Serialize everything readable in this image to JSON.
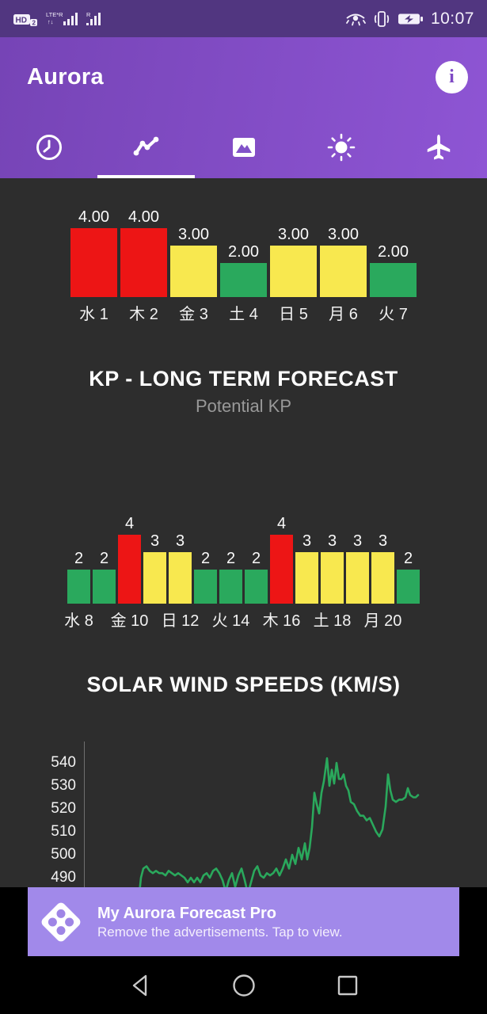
{
  "status_bar": {
    "time": "10:07",
    "left_icons": [
      "hd-volte-icon",
      "lte-signal-icon",
      "signal-icon"
    ],
    "right_icons": [
      "eye-comfort-icon",
      "vibrate-icon",
      "battery-charging-icon"
    ],
    "lte_label": "LTE*R",
    "sim2_label": "R"
  },
  "header": {
    "title": "Aurora"
  },
  "tabs": [
    {
      "icon": "clock-icon",
      "selected": false
    },
    {
      "icon": "trending-icon",
      "selected": true
    },
    {
      "icon": "image-icon",
      "selected": false
    },
    {
      "icon": "sun-icon",
      "selected": false
    },
    {
      "icon": "airplane-icon",
      "selected": false
    }
  ],
  "sections": {
    "kp_forecast": {
      "title": "KP - LONG TERM FORECAST",
      "subtitle": "Potential KP"
    },
    "solar_wind": {
      "title": "SOLAR WIND SPEEDS (KM/S)"
    }
  },
  "ad_banner": {
    "title": "My Aurora Forecast Pro",
    "subtitle": "Remove the advertisements. Tap to view."
  },
  "colors": {
    "kp_4_red": "#ed1515",
    "kp_3_yellow": "#f8e84f",
    "kp_2_green": "#2aa95d",
    "line_green": "#2aa85c",
    "status_bar_purple": "#513680",
    "header_purple_start": "#7644b6",
    "header_purple_end": "#8e55d4",
    "ad_purple": "#a189ea",
    "content_bg": "#2d2d2d"
  },
  "chart_data": [
    {
      "type": "bar",
      "name": "kp-forecast-days-1-7",
      "categories": [
        "水 1",
        "木 2",
        "金 3",
        "土 4",
        "日 5",
        "月 6",
        "火 7"
      ],
      "values": [
        4,
        4,
        3,
        2,
        3,
        3,
        2
      ],
      "value_labels": [
        "4.00",
        "4.00",
        "3.00",
        "2.00",
        "3.00",
        "3.00",
        "2.00"
      ],
      "ylim": [
        0,
        4
      ],
      "color_rule": "4=red, 3=yellow, 2=green"
    },
    {
      "type": "bar",
      "name": "kp-forecast-days-8-21",
      "categories": [
        "水 8",
        "",
        "金 10",
        "",
        "日 12",
        "",
        "火 14",
        "",
        "木 16",
        "",
        "土 18",
        "",
        "月 20",
        ""
      ],
      "values": [
        2,
        2,
        4,
        3,
        3,
        2,
        2,
        2,
        4,
        3,
        3,
        3,
        3,
        2
      ],
      "value_labels": [
        "2",
        "2",
        "4",
        "3",
        "3",
        "2",
        "2",
        "2",
        "4",
        "3",
        "3",
        "3",
        "3",
        "2"
      ],
      "ylim": [
        0,
        4
      ],
      "color_rule": "4=red, 3=yellow, 2=green"
    },
    {
      "type": "line",
      "name": "solar-wind-speeds",
      "title": "SOLAR WIND SPEEDS (KM/S)",
      "unit": "km/s",
      "y_ticks": [
        540,
        530,
        520,
        510,
        500,
        490
      ],
      "grid": false,
      "legend": "none",
      "points": [
        [
          175,
          480
        ],
        [
          178,
          490
        ],
        [
          181,
          494
        ],
        [
          185,
          495
        ],
        [
          189,
          493
        ],
        [
          193,
          492
        ],
        [
          197,
          493
        ],
        [
          201,
          492
        ],
        [
          205,
          492
        ],
        [
          209,
          491
        ],
        [
          213,
          493
        ],
        [
          217,
          492
        ],
        [
          221,
          491
        ],
        [
          225,
          492
        ],
        [
          229,
          491
        ],
        [
          233,
          490
        ],
        [
          237,
          488
        ],
        [
          241,
          490
        ],
        [
          245,
          488
        ],
        [
          249,
          490
        ],
        [
          253,
          488
        ],
        [
          257,
          491
        ],
        [
          261,
          492
        ],
        [
          265,
          490
        ],
        [
          269,
          493
        ],
        [
          273,
          494
        ],
        [
          277,
          492
        ],
        [
          281,
          489
        ],
        [
          285,
          484
        ],
        [
          289,
          489
        ],
        [
          293,
          492
        ],
        [
          297,
          486
        ],
        [
          301,
          491
        ],
        [
          305,
          494
        ],
        [
          309,
          489
        ],
        [
          313,
          483
        ],
        [
          317,
          488
        ],
        [
          321,
          493
        ],
        [
          325,
          495
        ],
        [
          329,
          491
        ],
        [
          333,
          490
        ],
        [
          337,
          492
        ],
        [
          341,
          491
        ],
        [
          345,
          492
        ],
        [
          349,
          494
        ],
        [
          353,
          491
        ],
        [
          357,
          494
        ],
        [
          361,
          498
        ],
        [
          365,
          494
        ],
        [
          369,
          500
        ],
        [
          373,
          496
        ],
        [
          377,
          503
        ],
        [
          381,
          498
        ],
        [
          385,
          505
        ],
        [
          388,
          498
        ],
        [
          391,
          503
        ],
        [
          394,
          512
        ],
        [
          397,
          527
        ],
        [
          400,
          522
        ],
        [
          403,
          518
        ],
        [
          406,
          527
        ],
        [
          409,
          532
        ],
        [
          413,
          542
        ],
        [
          416,
          530
        ],
        [
          419,
          537
        ],
        [
          422,
          531
        ],
        [
          425,
          540
        ],
        [
          428,
          533
        ],
        [
          431,
          533
        ],
        [
          434,
          535
        ],
        [
          437,
          530
        ],
        [
          440,
          528
        ],
        [
          443,
          523
        ],
        [
          447,
          522
        ],
        [
          451,
          519
        ],
        [
          455,
          517
        ],
        [
          459,
          517
        ],
        [
          463,
          515
        ],
        [
          467,
          516
        ],
        [
          471,
          513
        ],
        [
          475,
          510
        ],
        [
          479,
          508
        ],
        [
          483,
          511
        ],
        [
          487,
          521
        ],
        [
          490,
          535
        ],
        [
          493,
          528
        ],
        [
          496,
          524
        ],
        [
          500,
          523
        ],
        [
          504,
          524
        ],
        [
          508,
          524
        ],
        [
          512,
          525
        ],
        [
          515,
          529
        ],
        [
          518,
          526
        ],
        [
          522,
          525
        ],
        [
          525,
          525
        ],
        [
          528,
          526
        ]
      ]
    }
  ]
}
